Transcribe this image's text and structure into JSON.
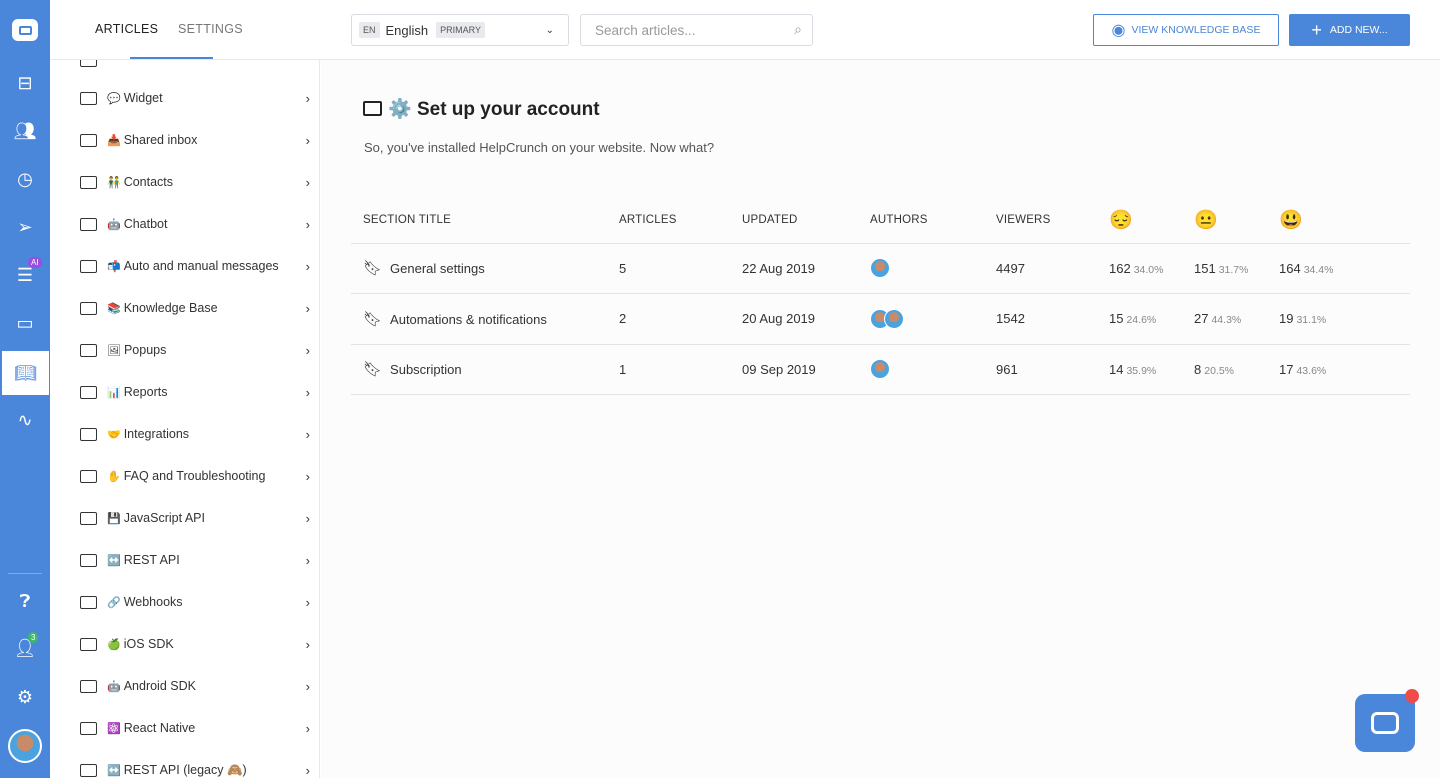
{
  "rail": {
    "ai_badge": "AI",
    "team_badge": "3",
    "icons": [
      "helpcrunch-logo-icon",
      "inbox-icon",
      "contacts-icon",
      "clock-icon",
      "send-icon",
      "chatbot-icon",
      "popup-icon",
      "knowledge-base-icon",
      "reports-icon",
      "help-icon",
      "team-icon",
      "settings-icon",
      "avatar"
    ]
  },
  "top": {
    "tabs": [
      "ARTICLES",
      "SETTINGS"
    ],
    "lang_code": "EN",
    "lang": "English",
    "lang_tag": "PRIMARY",
    "search_placeholder": "Search articles...",
    "view_kb": "VIEW KNOWLEDGE BASE",
    "add_new": "ADD NEW..."
  },
  "sidebar": {
    "items": [
      {
        "emoji": "💬",
        "label": "Widget"
      },
      {
        "emoji": "📥",
        "label": "Shared inbox"
      },
      {
        "emoji": "👬",
        "label": "Contacts"
      },
      {
        "emoji": "🤖",
        "label": "Chatbot"
      },
      {
        "emoji": "📬",
        "label": "Auto and manual messages"
      },
      {
        "emoji": "📚",
        "label": "Knowledge Base"
      },
      {
        "emoji": "🖼",
        "label": "Popups"
      },
      {
        "emoji": "📊",
        "label": "Reports"
      },
      {
        "emoji": "🤝",
        "label": "Integrations"
      },
      {
        "emoji": "✋",
        "label": "FAQ and Troubleshooting"
      },
      {
        "emoji": "💾",
        "label": "JavaScript API"
      },
      {
        "emoji": "↔️",
        "label": "REST API"
      },
      {
        "emoji": "🔗",
        "label": "Webhooks"
      },
      {
        "emoji": "🍏",
        "label": "iOS SDK"
      },
      {
        "emoji": "🤖",
        "label": "Android SDK"
      },
      {
        "emoji": "⚛️",
        "label": "React Native"
      },
      {
        "emoji": "↔️",
        "label": "REST API (legacy 🙈)"
      }
    ]
  },
  "main": {
    "title_emoji": "⚙️",
    "title": "Set up your account",
    "description": "So, you've installed HelpCrunch on your website. Now what?",
    "columns": [
      "SECTION TITLE",
      "ARTICLES",
      "UPDATED",
      "AUTHORS",
      "VIEWERS",
      "😔",
      "😐",
      "😃"
    ],
    "rows": [
      {
        "title": "General settings",
        "articles": "5",
        "updated": "22 Aug 2019",
        "authors": 1,
        "viewers": "4497",
        "r1": "162",
        "p1": "34.0%",
        "r2": "151",
        "p2": "31.7%",
        "r3": "164",
        "p3": "34.4%"
      },
      {
        "title": "Automations & notifications",
        "articles": "2",
        "updated": "20 Aug 2019",
        "authors": 2,
        "viewers": "1542",
        "r1": "15",
        "p1": "24.6%",
        "r2": "27",
        "p2": "44.3%",
        "r3": "19",
        "p3": "31.1%"
      },
      {
        "title": "Subscription",
        "articles": "1",
        "updated": "09 Sep 2019",
        "authors": 1,
        "viewers": "961",
        "r1": "14",
        "p1": "35.9%",
        "r2": "8",
        "p2": "20.5%",
        "r3": "17",
        "p3": "43.6%"
      }
    ]
  },
  "colors": {
    "accent": "#4a86d9"
  }
}
